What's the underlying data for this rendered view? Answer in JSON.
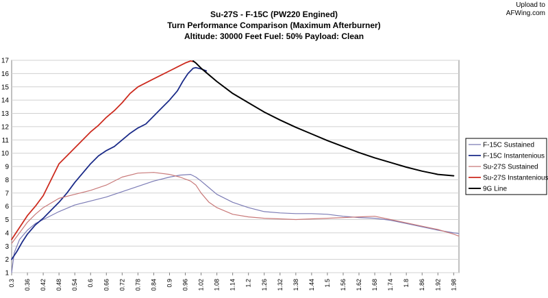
{
  "upload_note": {
    "line1": "Upload to",
    "line2": "AFWing.com"
  },
  "chart_data": {
    "type": "line",
    "title": "Su-27S - F-15C (PW220 Engined)",
    "subtitle": "Turn Performance Comparison (Maximum Afterburner)",
    "subtitle2": "Altitude: 30000 Feet  Fuel: 50% Payload: Clean",
    "xlabel": "",
    "ylabel": "",
    "xlim": [
      0.3,
      2.0
    ],
    "ylim": [
      1,
      17
    ],
    "grid": true,
    "legend_position": "right",
    "x_ticks": [
      "0.3",
      "0.36",
      "0.42",
      "0.48",
      "0.54",
      "0.6",
      "0.66",
      "0.72",
      "0.78",
      "0.84",
      "0.9",
      "0.96",
      "1.02",
      "1.08",
      "1.14",
      "1.2",
      "1.26",
      "1.32",
      "1.38",
      "1.44",
      "1.5",
      "1.56",
      "1.62",
      "1.68",
      "1.74",
      "1.8",
      "1.86",
      "1.92",
      "1.98"
    ],
    "y_ticks": [
      "1",
      "2",
      "3",
      "4",
      "5",
      "6",
      "7",
      "8",
      "9",
      "10",
      "11",
      "12",
      "13",
      "14",
      "15",
      "16",
      "17"
    ],
    "series": [
      {
        "name": "F-15C Sustained",
        "color": "#7b7bb5",
        "width": 1.2,
        "points": [
          [
            0.3,
            1.0
          ],
          [
            0.31,
            2.5
          ],
          [
            0.33,
            3.5
          ],
          [
            0.36,
            4.2
          ],
          [
            0.39,
            4.7
          ],
          [
            0.42,
            5.0
          ],
          [
            0.48,
            5.6
          ],
          [
            0.54,
            6.1
          ],
          [
            0.6,
            6.4
          ],
          [
            0.66,
            6.7
          ],
          [
            0.72,
            7.1
          ],
          [
            0.78,
            7.5
          ],
          [
            0.84,
            7.9
          ],
          [
            0.9,
            8.2
          ],
          [
            0.94,
            8.35
          ],
          [
            0.98,
            8.4
          ],
          [
            1.0,
            8.2
          ],
          [
            1.02,
            7.9
          ],
          [
            1.05,
            7.4
          ],
          [
            1.08,
            6.9
          ],
          [
            1.14,
            6.3
          ],
          [
            1.2,
            5.9
          ],
          [
            1.26,
            5.6
          ],
          [
            1.32,
            5.5
          ],
          [
            1.38,
            5.45
          ],
          [
            1.44,
            5.45
          ],
          [
            1.5,
            5.4
          ],
          [
            1.56,
            5.25
          ],
          [
            1.62,
            5.15
          ],
          [
            1.68,
            5.1
          ],
          [
            1.74,
            4.95
          ],
          [
            1.8,
            4.7
          ],
          [
            1.86,
            4.45
          ],
          [
            1.92,
            4.2
          ],
          [
            1.98,
            4.0
          ],
          [
            2.0,
            3.95
          ]
        ]
      },
      {
        "name": "F-15C Instantenious",
        "color": "#1a2a88",
        "width": 1.8,
        "points": [
          [
            0.3,
            2.0
          ],
          [
            0.32,
            2.6
          ],
          [
            0.34,
            3.3
          ],
          [
            0.36,
            3.9
          ],
          [
            0.39,
            4.6
          ],
          [
            0.42,
            5.1
          ],
          [
            0.45,
            5.7
          ],
          [
            0.48,
            6.3
          ],
          [
            0.51,
            7.0
          ],
          [
            0.54,
            7.8
          ],
          [
            0.57,
            8.5
          ],
          [
            0.6,
            9.2
          ],
          [
            0.63,
            9.8
          ],
          [
            0.66,
            10.2
          ],
          [
            0.69,
            10.5
          ],
          [
            0.72,
            11.0
          ],
          [
            0.75,
            11.5
          ],
          [
            0.78,
            11.9
          ],
          [
            0.81,
            12.2
          ],
          [
            0.84,
            12.8
          ],
          [
            0.87,
            13.4
          ],
          [
            0.9,
            14.0
          ],
          [
            0.93,
            14.7
          ],
          [
            0.95,
            15.4
          ],
          [
            0.97,
            16.0
          ],
          [
            0.99,
            16.4
          ],
          [
            1.0,
            16.45
          ],
          [
            1.02,
            16.35
          ],
          [
            1.04,
            16.2
          ]
        ]
      },
      {
        "name": "Su-27S Sustained",
        "color": "#c87878",
        "width": 1.2,
        "points": [
          [
            0.3,
            3.2
          ],
          [
            0.33,
            4.0
          ],
          [
            0.36,
            4.8
          ],
          [
            0.39,
            5.4
          ],
          [
            0.42,
            5.9
          ],
          [
            0.48,
            6.6
          ],
          [
            0.54,
            6.9
          ],
          [
            0.6,
            7.2
          ],
          [
            0.66,
            7.6
          ],
          [
            0.72,
            8.2
          ],
          [
            0.78,
            8.5
          ],
          [
            0.84,
            8.55
          ],
          [
            0.9,
            8.4
          ],
          [
            0.94,
            8.2
          ],
          [
            0.98,
            7.9
          ],
          [
            1.0,
            7.6
          ],
          [
            1.02,
            7.0
          ],
          [
            1.05,
            6.3
          ],
          [
            1.08,
            5.9
          ],
          [
            1.14,
            5.4
          ],
          [
            1.2,
            5.2
          ],
          [
            1.26,
            5.1
          ],
          [
            1.32,
            5.05
          ],
          [
            1.38,
            5.0
          ],
          [
            1.44,
            5.05
          ],
          [
            1.5,
            5.1
          ],
          [
            1.56,
            5.15
          ],
          [
            1.62,
            5.2
          ],
          [
            1.68,
            5.25
          ],
          [
            1.74,
            5.0
          ],
          [
            1.8,
            4.75
          ],
          [
            1.86,
            4.5
          ],
          [
            1.92,
            4.25
          ],
          [
            1.98,
            3.9
          ],
          [
            2.0,
            3.75
          ]
        ]
      },
      {
        "name": "Su-27S Instantenious",
        "color": "#cc2a1e",
        "width": 1.8,
        "points": [
          [
            0.3,
            3.5
          ],
          [
            0.32,
            4.1
          ],
          [
            0.34,
            4.7
          ],
          [
            0.36,
            5.3
          ],
          [
            0.39,
            6.0
          ],
          [
            0.42,
            6.8
          ],
          [
            0.45,
            8.0
          ],
          [
            0.48,
            9.2
          ],
          [
            0.51,
            9.8
          ],
          [
            0.54,
            10.4
          ],
          [
            0.57,
            11.0
          ],
          [
            0.6,
            11.6
          ],
          [
            0.63,
            12.1
          ],
          [
            0.66,
            12.7
          ],
          [
            0.69,
            13.2
          ],
          [
            0.72,
            13.8
          ],
          [
            0.75,
            14.5
          ],
          [
            0.78,
            15.0
          ],
          [
            0.81,
            15.3
          ],
          [
            0.84,
            15.6
          ],
          [
            0.87,
            15.9
          ],
          [
            0.9,
            16.2
          ],
          [
            0.93,
            16.5
          ],
          [
            0.96,
            16.8
          ],
          [
            0.98,
            16.95
          ],
          [
            0.99,
            16.9
          ]
        ]
      },
      {
        "name": "9G Line",
        "color": "#000000",
        "width": 2.0,
        "points": [
          [
            0.99,
            16.95
          ],
          [
            1.0,
            16.8
          ],
          [
            1.02,
            16.4
          ],
          [
            1.05,
            15.9
          ],
          [
            1.08,
            15.4
          ],
          [
            1.14,
            14.5
          ],
          [
            1.2,
            13.8
          ],
          [
            1.26,
            13.1
          ],
          [
            1.32,
            12.5
          ],
          [
            1.38,
            11.95
          ],
          [
            1.44,
            11.45
          ],
          [
            1.5,
            10.95
          ],
          [
            1.56,
            10.5
          ],
          [
            1.62,
            10.05
          ],
          [
            1.68,
            9.65
          ],
          [
            1.74,
            9.3
          ],
          [
            1.8,
            8.95
          ],
          [
            1.86,
            8.65
          ],
          [
            1.92,
            8.4
          ],
          [
            1.98,
            8.3
          ]
        ]
      }
    ]
  }
}
